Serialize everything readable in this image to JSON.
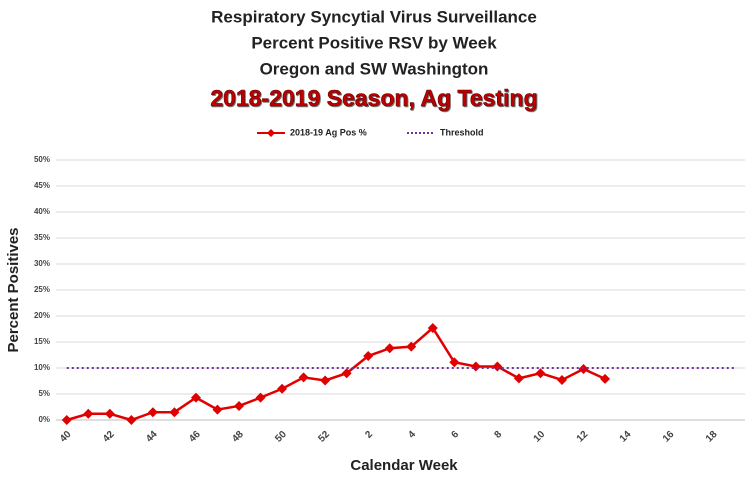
{
  "chart_data": {
    "type": "line",
    "title": [
      "Respiratory Syncytial Virus Surveillance",
      "Percent Positive RSV by Week",
      "Oregon and SW Washington",
      "2018-2019 Season, Ag Testing"
    ],
    "x_label": "Calendar Week",
    "y_label": "Percent Positives",
    "categories": [
      "40",
      null,
      "42",
      null,
      "44",
      null,
      "46",
      null,
      "48",
      null,
      "50",
      null,
      "52",
      null,
      "2",
      null,
      "4",
      null,
      "6",
      null,
      "8",
      null,
      "10",
      null,
      "12",
      null,
      "14",
      null,
      "16",
      null,
      "18",
      null
    ],
    "series": [
      {
        "name": "2018-19 Ag Pos %",
        "color": "#e00000",
        "values": [
          0,
          1.2,
          1.2,
          0,
          1.5,
          1.5,
          4.3,
          2.0,
          2.7,
          4.3,
          6.0,
          8.2,
          7.6,
          9.0,
          12.3,
          13.8,
          14.1,
          17.7,
          11.1,
          10.3,
          10.3,
          8.0,
          9.0,
          7.7,
          9.8,
          7.9,
          null,
          null,
          null,
          null,
          null,
          null
        ]
      },
      {
        "name": "Threshold",
        "color": "#7030a0",
        "values": [
          10,
          10,
          10,
          10,
          10,
          10,
          10,
          10,
          10,
          10,
          10,
          10,
          10,
          10,
          10,
          10,
          10,
          10,
          10,
          10,
          10,
          10,
          10,
          10,
          10,
          10,
          10,
          10,
          10,
          10,
          10,
          10
        ]
      }
    ],
    "ylim": [
      0,
      50
    ],
    "yticks": [
      {
        "value": 0,
        "label": "0%"
      },
      {
        "value": 5,
        "label": "5%"
      },
      {
        "value": 10,
        "label": "10%"
      },
      {
        "value": 15,
        "label": "15%"
      },
      {
        "value": 20,
        "label": "20%"
      },
      {
        "value": 25,
        "label": "25%"
      },
      {
        "value": 30,
        "label": "30%"
      },
      {
        "value": 35,
        "label": "35%"
      },
      {
        "value": 40,
        "label": "40%"
      },
      {
        "value": 45,
        "label": "45%"
      },
      {
        "value": 50,
        "label": "50%"
      }
    ],
    "grid": true,
    "legend": "top"
  }
}
